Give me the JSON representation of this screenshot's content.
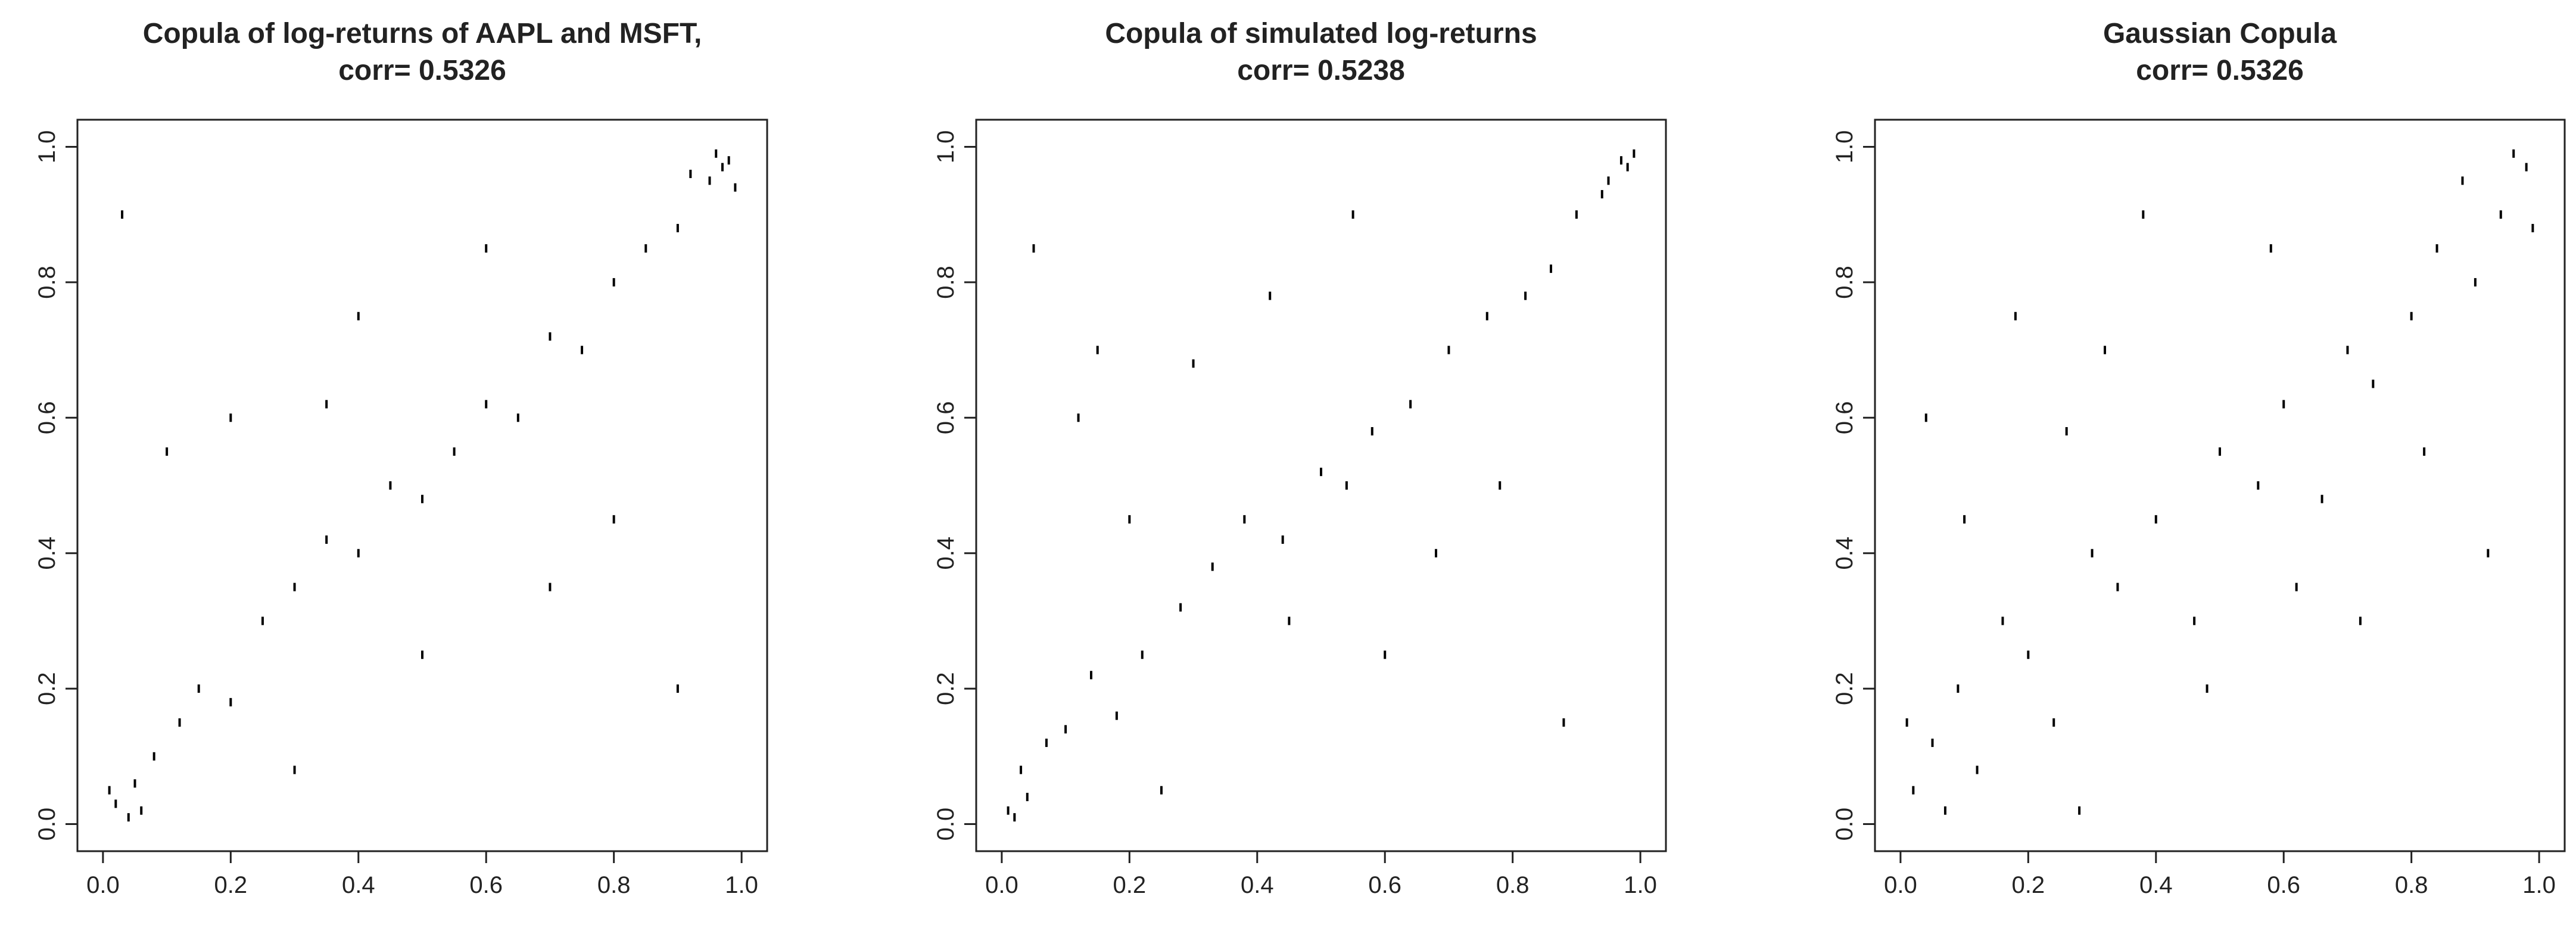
{
  "chart_data": [
    {
      "type": "scatter",
      "title": [
        "Copula of log-returns of AAPL and MSFT,",
        "corr= 0.5326"
      ],
      "color": "#000000",
      "x": [
        0.02,
        0.05,
        0.08,
        0.12,
        0.15,
        0.2,
        0.25,
        0.3,
        0.35,
        0.4,
        0.45,
        0.5,
        0.55,
        0.6,
        0.65,
        0.7,
        0.75,
        0.8,
        0.85,
        0.9,
        0.95,
        0.98,
        0.03,
        0.1,
        0.3,
        0.5,
        0.7,
        0.9,
        0.6,
        0.2,
        0.4,
        0.8,
        0.97,
        0.06,
        0.35,
        0.92,
        0.01,
        0.04,
        0.96,
        0.99
      ],
      "y": [
        0.03,
        0.06,
        0.1,
        0.15,
        0.2,
        0.18,
        0.3,
        0.35,
        0.42,
        0.4,
        0.5,
        0.48,
        0.55,
        0.62,
        0.6,
        0.72,
        0.7,
        0.8,
        0.85,
        0.88,
        0.95,
        0.98,
        0.9,
        0.55,
        0.08,
        0.25,
        0.35,
        0.2,
        0.85,
        0.6,
        0.75,
        0.45,
        0.97,
        0.02,
        0.62,
        0.96,
        0.05,
        0.01,
        0.99,
        0.94
      ],
      "xlim": [
        -0.04,
        1.04
      ],
      "ylim": [
        -0.04,
        1.04
      ],
      "xticks": [
        {
          "value": 0,
          "label": "0.0"
        },
        {
          "value": 0.2,
          "label": "0.2"
        },
        {
          "value": 0.4,
          "label": "0.4"
        },
        {
          "value": 0.6,
          "label": "0.6"
        },
        {
          "value": 0.8,
          "label": "0.8"
        },
        {
          "value": 1,
          "label": "1.0"
        }
      ],
      "yticks": [
        {
          "value": 0,
          "label": "0.0"
        },
        {
          "value": 0.2,
          "label": "0.2"
        },
        {
          "value": 0.4,
          "label": "0.4"
        },
        {
          "value": 0.6,
          "label": "0.6"
        },
        {
          "value": 0.8,
          "label": "0.8"
        },
        {
          "value": 1,
          "label": "1.0"
        }
      ]
    },
    {
      "type": "scatter",
      "title": [
        "Copula of simulated log-returns",
        "corr= 0.5238"
      ],
      "color": "#000000",
      "x": [
        0.01,
        0.04,
        0.07,
        0.1,
        0.14,
        0.18,
        0.22,
        0.28,
        0.33,
        0.38,
        0.44,
        0.5,
        0.54,
        0.58,
        0.64,
        0.7,
        0.76,
        0.82,
        0.86,
        0.9,
        0.94,
        0.98,
        0.05,
        0.12,
        0.25,
        0.45,
        0.68,
        0.88,
        0.55,
        0.15,
        0.42,
        0.78,
        0.99,
        0.02,
        0.3,
        0.95,
        0.03,
        0.6,
        0.97,
        0.2
      ],
      "y": [
        0.02,
        0.04,
        0.12,
        0.14,
        0.22,
        0.16,
        0.25,
        0.32,
        0.38,
        0.45,
        0.42,
        0.52,
        0.5,
        0.58,
        0.62,
        0.7,
        0.75,
        0.78,
        0.82,
        0.9,
        0.93,
        0.97,
        0.85,
        0.6,
        0.05,
        0.3,
        0.4,
        0.15,
        0.9,
        0.7,
        0.78,
        0.5,
        0.99,
        0.01,
        0.68,
        0.95,
        0.08,
        0.25,
        0.98,
        0.45
      ],
      "xlim": [
        -0.04,
        1.04
      ],
      "ylim": [
        -0.04,
        1.04
      ],
      "xticks": [
        {
          "value": 0,
          "label": "0.0"
        },
        {
          "value": 0.2,
          "label": "0.2"
        },
        {
          "value": 0.4,
          "label": "0.4"
        },
        {
          "value": 0.6,
          "label": "0.6"
        },
        {
          "value": 0.8,
          "label": "0.8"
        },
        {
          "value": 1,
          "label": "1.0"
        }
      ],
      "yticks": [
        {
          "value": 0,
          "label": "0.0"
        },
        {
          "value": 0.2,
          "label": "0.2"
        },
        {
          "value": 0.4,
          "label": "0.4"
        },
        {
          "value": 0.6,
          "label": "0.6"
        },
        {
          "value": 0.8,
          "label": "0.8"
        },
        {
          "value": 1,
          "label": "1.0"
        }
      ]
    },
    {
      "type": "scatter",
      "title": [
        "Gaussian Copula",
        "corr= 0.5326"
      ],
      "color": "#000000",
      "x": [
        0.02,
        0.05,
        0.09,
        0.12,
        0.16,
        0.2,
        0.24,
        0.3,
        0.34,
        0.4,
        0.46,
        0.5,
        0.56,
        0.6,
        0.66,
        0.7,
        0.74,
        0.8,
        0.84,
        0.9,
        0.94,
        0.98,
        0.04,
        0.1,
        0.28,
        0.48,
        0.72,
        0.92,
        0.58,
        0.18,
        0.38,
        0.82,
        0.96,
        0.07,
        0.32,
        0.88,
        0.01,
        0.62,
        0.99,
        0.26
      ],
      "y": [
        0.05,
        0.12,
        0.2,
        0.08,
        0.3,
        0.25,
        0.15,
        0.4,
        0.35,
        0.45,
        0.3,
        0.55,
        0.5,
        0.62,
        0.48,
        0.7,
        0.65,
        0.75,
        0.85,
        0.8,
        0.9,
        0.97,
        0.6,
        0.45,
        0.02,
        0.2,
        0.3,
        0.4,
        0.85,
        0.75,
        0.9,
        0.55,
        0.99,
        0.02,
        0.7,
        0.95,
        0.15,
        0.35,
        0.88,
        0.58
      ],
      "xlim": [
        -0.04,
        1.04
      ],
      "ylim": [
        -0.04,
        1.04
      ],
      "xticks": [
        {
          "value": 0,
          "label": "0.0"
        },
        {
          "value": 0.2,
          "label": "0.2"
        },
        {
          "value": 0.4,
          "label": "0.4"
        },
        {
          "value": 0.6,
          "label": "0.6"
        },
        {
          "value": 0.8,
          "label": "0.8"
        },
        {
          "value": 1,
          "label": "1.0"
        }
      ],
      "yticks": [
        {
          "value": 0,
          "label": "0.0"
        },
        {
          "value": 0.2,
          "label": "0.2"
        },
        {
          "value": 0.4,
          "label": "0.4"
        },
        {
          "value": 0.6,
          "label": "0.6"
        },
        {
          "value": 0.8,
          "label": "0.8"
        },
        {
          "value": 1,
          "label": "1.0"
        }
      ]
    }
  ]
}
